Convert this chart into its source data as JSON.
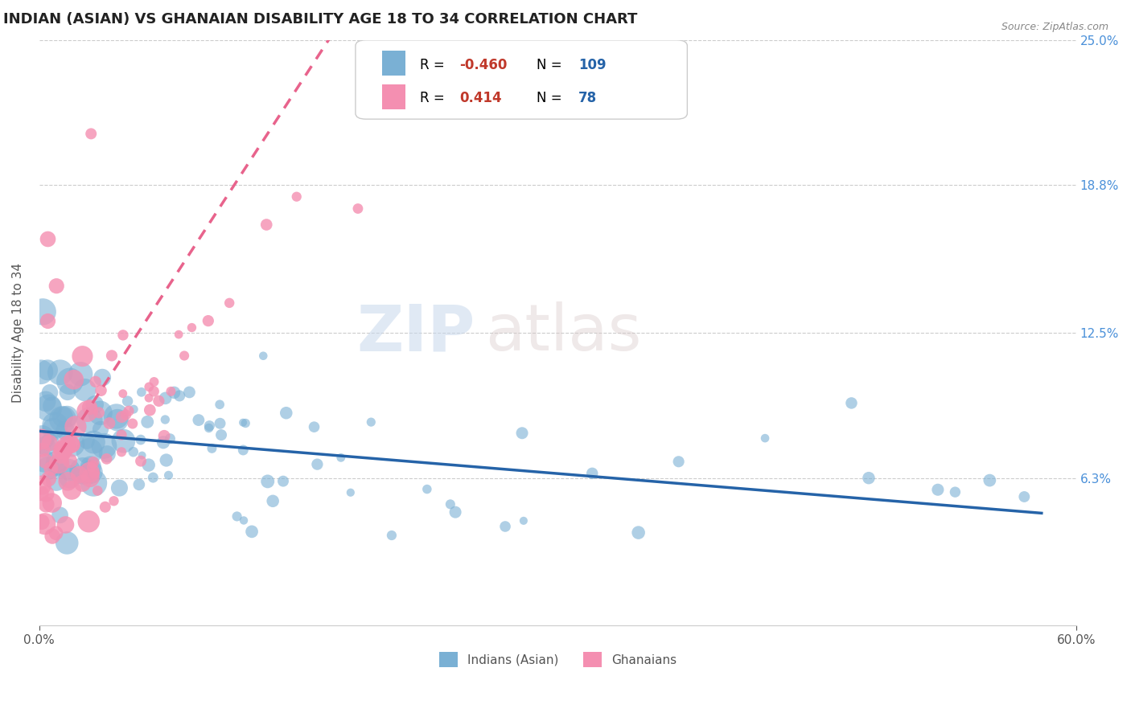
{
  "title": "INDIAN (ASIAN) VS GHANAIAN DISABILITY AGE 18 TO 34 CORRELATION CHART",
  "source_text": "Source: ZipAtlas.com",
  "ylabel": "Disability Age 18 to 34",
  "xlim": [
    0.0,
    0.6
  ],
  "ylim": [
    0.0,
    0.25
  ],
  "ytick_vals": [
    0.063,
    0.125,
    0.188,
    0.25
  ],
  "ytick_labels": [
    "6.3%",
    "12.5%",
    "18.8%",
    "25.0%"
  ],
  "blue_color": "#7ab0d4",
  "pink_color": "#f48fb1",
  "blue_line_color": "#2563a8",
  "pink_line_color": "#e8638c",
  "R_blue": -0.46,
  "N_blue": 109,
  "R_pink": 0.414,
  "N_pink": 78,
  "watermark_zip": "ZIP",
  "watermark_atlas": "atlas",
  "title_color": "#222222",
  "axis_label_color": "#555555",
  "grid_color": "#cccccc",
  "background_color": "#ffffff",
  "ytick_color": "#4a90d9",
  "source_color": "#888888",
  "legend_blue_R": "-0.460",
  "legend_blue_N": "109",
  "legend_pink_R": "0.414",
  "legend_pink_N": "78",
  "legend_R_label": "R =",
  "legend_N_label": "N =",
  "legend_R_color": "#c0392b",
  "legend_N_color": "#2563a8",
  "bottom_legend_indian": "Indians (Asian)",
  "bottom_legend_ghanaian": "Ghanaians"
}
